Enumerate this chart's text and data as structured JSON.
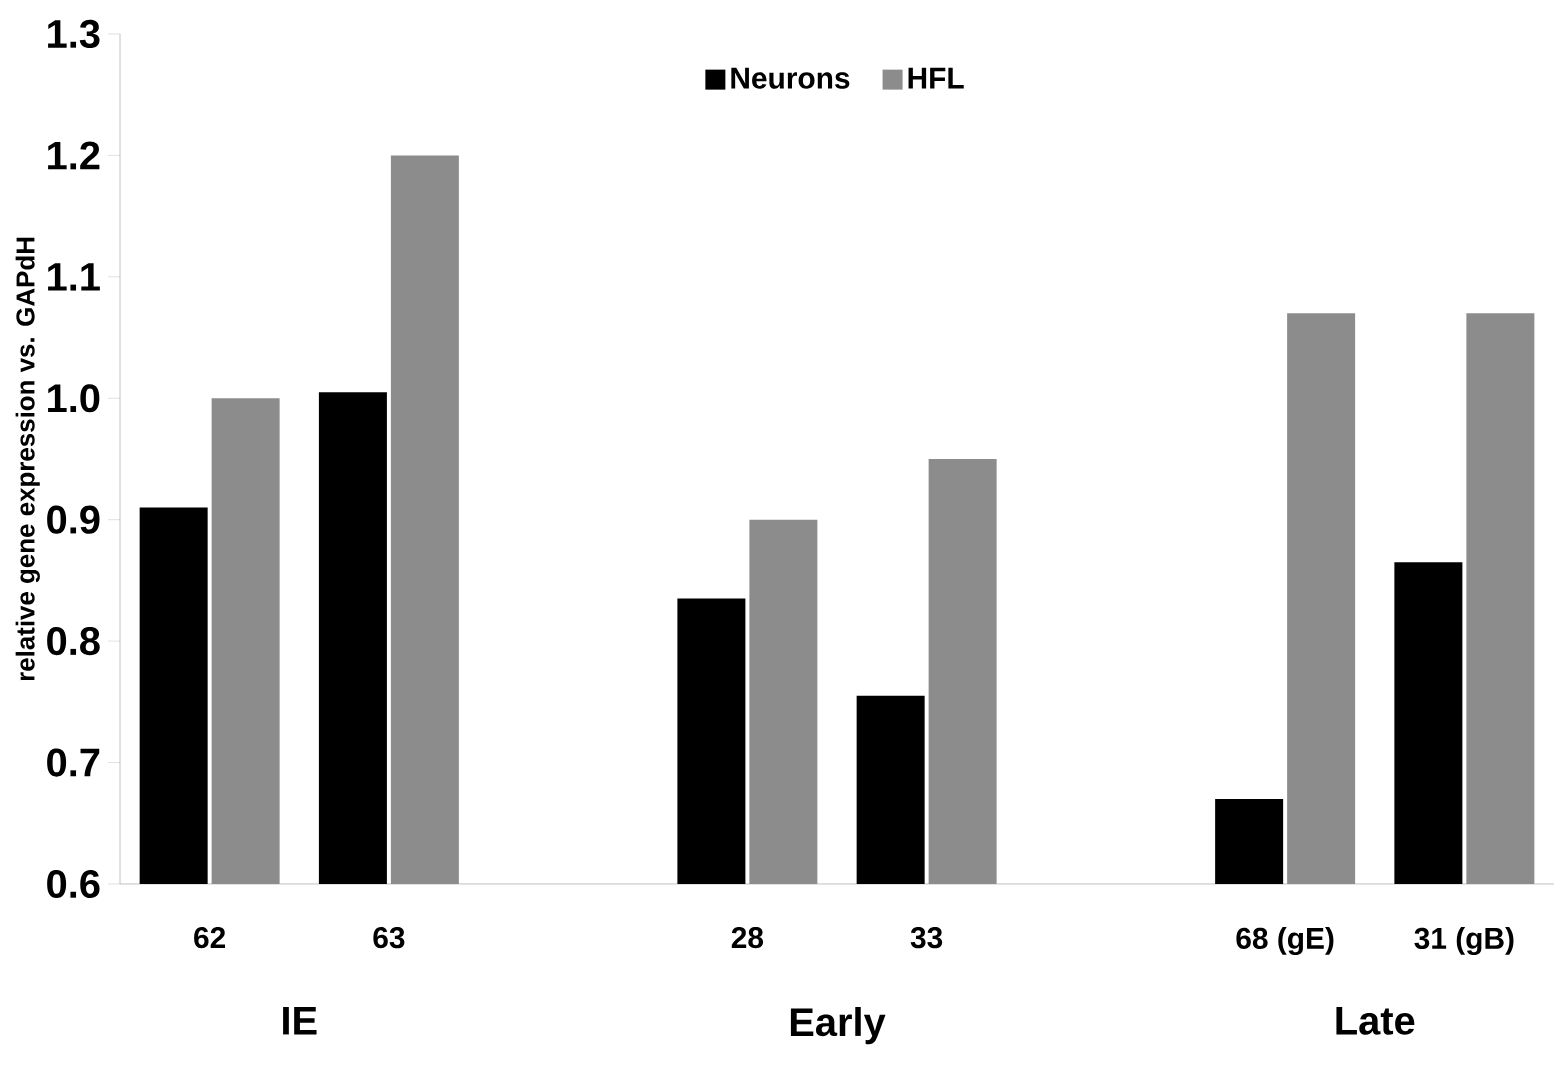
{
  "chart_data": {
    "type": "bar",
    "ylabel": "relative gene expression vs. GAPdH",
    "categories": [
      "62",
      "63",
      null,
      "28",
      "33",
      null,
      "68 (gE)",
      "31 (gB)"
    ],
    "series": [
      {
        "name": "Neurons",
        "color": "#000000",
        "values": [
          0.91,
          1.005,
          null,
          0.835,
          0.755,
          null,
          0.67,
          0.865
        ]
      },
      {
        "name": "HFL",
        "color": "#8c8c8c",
        "values": [
          1.0,
          1.2,
          null,
          0.9,
          0.95,
          null,
          1.07,
          1.07
        ]
      }
    ],
    "ylim": [
      0.6,
      1.3
    ],
    "yticks": [
      {
        "value": 0.6,
        "label": "0.6"
      },
      {
        "value": 0.7,
        "label": "0.7"
      },
      {
        "value": 0.8,
        "label": "0.8"
      },
      {
        "value": 0.9,
        "label": "0.9"
      },
      {
        "value": 1.0,
        "label": "1.0"
      },
      {
        "value": 1.1,
        "label": "1.1"
      },
      {
        "value": 1.2,
        "label": "1.2"
      },
      {
        "value": 1.3,
        "label": "1.3"
      }
    ],
    "annotations": [
      "IE",
      "Early",
      "Late"
    ],
    "legend": "top",
    "grid": false
  }
}
